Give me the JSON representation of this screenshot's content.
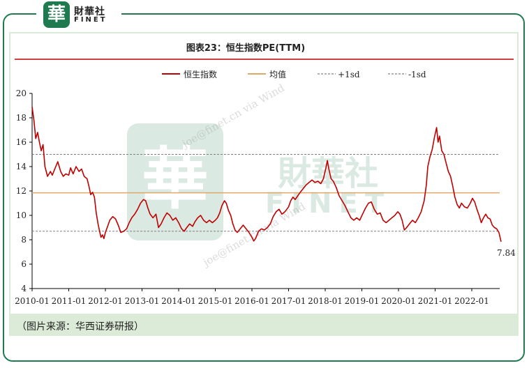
{
  "brand": {
    "seal_char": "華",
    "name_cn": "財華社",
    "name_en": "FINET"
  },
  "chart_data": {
    "type": "line",
    "title": "图表23：恒生指数PE(TTM)",
    "x": [
      "2010-01",
      "2011-01",
      "2012-01",
      "2013-01",
      "2014-01",
      "2015-01",
      "2016-01",
      "2017-01",
      "2018-01",
      "2019-01",
      "2020-01",
      "2021-01",
      "2022-01"
    ],
    "xlabel": "",
    "ylabel": "",
    "ylim": [
      4,
      20
    ],
    "yticks": [
      4,
      6,
      8,
      10,
      12,
      14,
      16,
      18,
      20
    ],
    "grid": false,
    "legend_position": "top",
    "series": [
      {
        "name": "恒生指数",
        "color": "#c00000",
        "points": [
          [
            2010.0,
            18.9
          ],
          [
            2010.05,
            17.8
          ],
          [
            2010.1,
            16.3
          ],
          [
            2010.15,
            16.8
          ],
          [
            2010.2,
            16.0
          ],
          [
            2010.25,
            15.3
          ],
          [
            2010.3,
            15.8
          ],
          [
            2010.35,
            14.0
          ],
          [
            2010.42,
            13.2
          ],
          [
            2010.5,
            13.6
          ],
          [
            2010.55,
            13.3
          ],
          [
            2010.62,
            13.8
          ],
          [
            2010.7,
            14.4
          ],
          [
            2010.78,
            13.6
          ],
          [
            2010.85,
            13.2
          ],
          [
            2010.92,
            13.4
          ],
          [
            2011.0,
            13.3
          ],
          [
            2011.05,
            13.9
          ],
          [
            2011.12,
            13.4
          ],
          [
            2011.2,
            14.0
          ],
          [
            2011.28,
            13.6
          ],
          [
            2011.35,
            13.8
          ],
          [
            2011.42,
            13.2
          ],
          [
            2011.5,
            13.0
          ],
          [
            2011.55,
            12.4
          ],
          [
            2011.6,
            11.7
          ],
          [
            2011.65,
            11.9
          ],
          [
            2011.7,
            11.5
          ],
          [
            2011.75,
            10.2
          ],
          [
            2011.8,
            9.3
          ],
          [
            2011.85,
            8.6
          ],
          [
            2011.88,
            8.2
          ],
          [
            2011.92,
            8.4
          ],
          [
            2011.96,
            8.1
          ],
          [
            2012.0,
            8.6
          ],
          [
            2012.05,
            9.0
          ],
          [
            2012.12,
            9.6
          ],
          [
            2012.2,
            9.9
          ],
          [
            2012.28,
            9.7
          ],
          [
            2012.35,
            9.2
          ],
          [
            2012.42,
            8.6
          ],
          [
            2012.5,
            8.7
          ],
          [
            2012.58,
            8.9
          ],
          [
            2012.65,
            9.4
          ],
          [
            2012.72,
            9.8
          ],
          [
            2012.8,
            10.1
          ],
          [
            2012.88,
            10.5
          ],
          [
            2012.96,
            11.0
          ],
          [
            2013.04,
            11.3
          ],
          [
            2013.1,
            11.2
          ],
          [
            2013.16,
            10.6
          ],
          [
            2013.22,
            10.1
          ],
          [
            2013.3,
            9.8
          ],
          [
            2013.38,
            10.1
          ],
          [
            2013.45,
            9.0
          ],
          [
            2013.52,
            9.3
          ],
          [
            2013.6,
            9.8
          ],
          [
            2013.68,
            10.2
          ],
          [
            2013.76,
            10.0
          ],
          [
            2013.84,
            9.6
          ],
          [
            2013.92,
            9.8
          ],
          [
            2014.0,
            9.4
          ],
          [
            2014.08,
            8.9
          ],
          [
            2014.15,
            8.7
          ],
          [
            2014.22,
            9.0
          ],
          [
            2014.3,
            9.3
          ],
          [
            2014.38,
            9.1
          ],
          [
            2014.45,
            9.5
          ],
          [
            2014.52,
            9.8
          ],
          [
            2014.6,
            10.0
          ],
          [
            2014.68,
            9.6
          ],
          [
            2014.76,
            9.4
          ],
          [
            2014.84,
            9.6
          ],
          [
            2014.92,
            9.4
          ],
          [
            2015.0,
            9.6
          ],
          [
            2015.06,
            9.8
          ],
          [
            2015.12,
            10.2
          ],
          [
            2015.18,
            10.8
          ],
          [
            2015.25,
            11.2
          ],
          [
            2015.3,
            11.0
          ],
          [
            2015.36,
            10.4
          ],
          [
            2015.42,
            10.0
          ],
          [
            2015.48,
            9.3
          ],
          [
            2015.54,
            8.8
          ],
          [
            2015.6,
            8.6
          ],
          [
            2015.68,
            8.9
          ],
          [
            2015.76,
            9.2
          ],
          [
            2015.84,
            8.9
          ],
          [
            2015.92,
            8.6
          ],
          [
            2016.0,
            8.2
          ],
          [
            2016.05,
            7.9
          ],
          [
            2016.1,
            8.1
          ],
          [
            2016.18,
            8.7
          ],
          [
            2016.26,
            8.9
          ],
          [
            2016.34,
            8.8
          ],
          [
            2016.42,
            9.0
          ],
          [
            2016.5,
            9.3
          ],
          [
            2016.58,
            9.9
          ],
          [
            2016.66,
            10.3
          ],
          [
            2016.74,
            10.5
          ],
          [
            2016.82,
            10.1
          ],
          [
            2016.9,
            10.3
          ],
          [
            2017.0,
            10.7
          ],
          [
            2017.06,
            11.2
          ],
          [
            2017.12,
            11.5
          ],
          [
            2017.18,
            11.3
          ],
          [
            2017.25,
            11.6
          ],
          [
            2017.32,
            11.9
          ],
          [
            2017.4,
            12.2
          ],
          [
            2017.48,
            12.5
          ],
          [
            2017.56,
            12.7
          ],
          [
            2017.64,
            12.9
          ],
          [
            2017.72,
            12.7
          ],
          [
            2017.8,
            12.8
          ],
          [
            2017.88,
            12.6
          ],
          [
            2017.95,
            13.0
          ],
          [
            2018.02,
            13.9
          ],
          [
            2018.06,
            14.5
          ],
          [
            2018.1,
            13.8
          ],
          [
            2018.16,
            13.0
          ],
          [
            2018.22,
            12.8
          ],
          [
            2018.3,
            12.3
          ],
          [
            2018.38,
            11.6
          ],
          [
            2018.46,
            11.2
          ],
          [
            2018.54,
            10.8
          ],
          [
            2018.62,
            10.3
          ],
          [
            2018.7,
            9.8
          ],
          [
            2018.78,
            9.6
          ],
          [
            2018.86,
            9.8
          ],
          [
            2018.94,
            9.6
          ],
          [
            2019.02,
            10.1
          ],
          [
            2019.1,
            10.6
          ],
          [
            2019.18,
            11.0
          ],
          [
            2019.26,
            11.1
          ],
          [
            2019.34,
            10.5
          ],
          [
            2019.42,
            10.1
          ],
          [
            2019.5,
            10.2
          ],
          [
            2019.58,
            9.6
          ],
          [
            2019.66,
            9.4
          ],
          [
            2019.74,
            9.6
          ],
          [
            2019.82,
            9.8
          ],
          [
            2019.9,
            10.0
          ],
          [
            2019.98,
            10.3
          ],
          [
            2020.04,
            10.1
          ],
          [
            2020.1,
            9.6
          ],
          [
            2020.16,
            8.8
          ],
          [
            2020.22,
            9.0
          ],
          [
            2020.3,
            9.3
          ],
          [
            2020.38,
            9.6
          ],
          [
            2020.46,
            9.4
          ],
          [
            2020.54,
            9.8
          ],
          [
            2020.62,
            10.3
          ],
          [
            2020.7,
            11.2
          ],
          [
            2020.76,
            12.5
          ],
          [
            2020.8,
            14.0
          ],
          [
            2020.86,
            14.8
          ],
          [
            2020.92,
            15.4
          ],
          [
            2020.98,
            16.4
          ],
          [
            2021.04,
            17.2
          ],
          [
            2021.08,
            16.0
          ],
          [
            2021.12,
            16.5
          ],
          [
            2021.18,
            15.3
          ],
          [
            2021.24,
            15.0
          ],
          [
            2021.3,
            14.3
          ],
          [
            2021.36,
            13.6
          ],
          [
            2021.42,
            13.2
          ],
          [
            2021.48,
            12.4
          ],
          [
            2021.54,
            11.5
          ],
          [
            2021.6,
            10.9
          ],
          [
            2021.66,
            10.6
          ],
          [
            2021.72,
            11.0
          ],
          [
            2021.8,
            10.7
          ],
          [
            2021.88,
            10.6
          ],
          [
            2021.96,
            11.0
          ],
          [
            2022.02,
            11.4
          ],
          [
            2022.08,
            11.1
          ],
          [
            2022.14,
            10.5
          ],
          [
            2022.2,
            10.0
          ],
          [
            2022.26,
            9.4
          ],
          [
            2022.32,
            9.8
          ],
          [
            2022.38,
            10.1
          ],
          [
            2022.44,
            9.8
          ],
          [
            2022.5,
            9.7
          ],
          [
            2022.56,
            9.2
          ],
          [
            2022.62,
            9.0
          ],
          [
            2022.68,
            8.9
          ],
          [
            2022.74,
            8.6
          ],
          [
            2022.8,
            7.84
          ]
        ]
      },
      {
        "name": "均值",
        "color": "#e0a868",
        "value": 11.85
      },
      {
        "name": "+1sd",
        "color": "#808080",
        "value": 15.0
      },
      {
        "name": "-1sd",
        "color": "#808080",
        "value": 8.7
      }
    ],
    "annotations": [
      {
        "text": "7.84"
      }
    ]
  },
  "watermark": {
    "text_cn": "財華社",
    "text_en": "FINET",
    "diag_1": "joe@finet.cn via Wind",
    "diag_2": "joe@finet.cn via Wind"
  },
  "source": "（图片来源：华西证券研报）"
}
